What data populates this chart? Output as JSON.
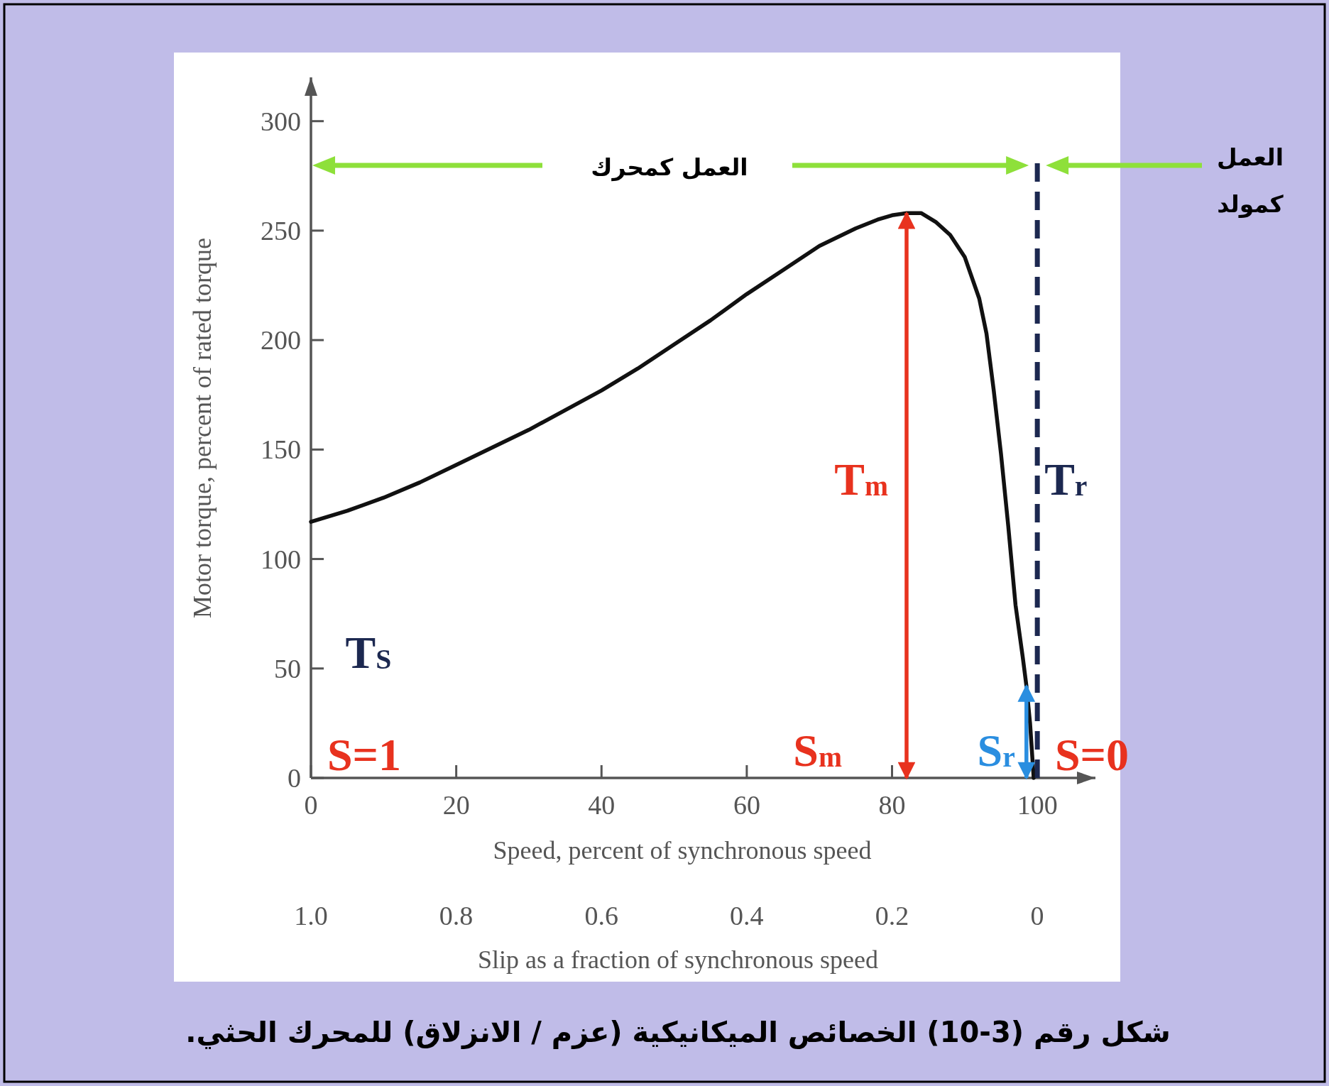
{
  "chart_data": {
    "type": "line",
    "title": "شكل رقم (3-10) الخصائص الميكانيكية (عزم / الانزلاق) للمحرك الحثي.",
    "xlabel": "Speed, percent of synchronous speed",
    "ylabel": "Motor torque, percent of rated torque",
    "x2label": "Slip as a fraction of synchronous speed",
    "xlim": [
      0,
      108
    ],
    "xticks": [
      0,
      20,
      40,
      60,
      80,
      100
    ],
    "ylim": [
      0,
      320
    ],
    "yticks": [
      0,
      50,
      100,
      150,
      200,
      250,
      300
    ],
    "x2lim": [
      1,
      0
    ],
    "x2ticks": [
      {
        "value": 1,
        "label": "1.0"
      },
      0.8,
      0.6,
      0.4,
      0.2,
      0
    ],
    "series": [
      {
        "color": "#111111",
        "x": [
          0,
          5,
          10,
          15,
          20,
          25,
          30,
          35,
          40,
          45,
          50,
          55,
          60,
          65,
          70,
          75,
          78,
          80,
          82,
          84,
          86,
          88,
          90,
          92,
          93,
          94,
          95,
          96,
          97,
          98,
          98.5,
          99,
          99.5
        ],
        "values": [
          117,
          122,
          128,
          135,
          143,
          151,
          159,
          168,
          177,
          187,
          198,
          209,
          221,
          232,
          243,
          251,
          255,
          257,
          258,
          258,
          254,
          248,
          238,
          219,
          203,
          177,
          148,
          115,
          79,
          55,
          42,
          25,
          0
        ]
      }
    ],
    "ref_lines": [
      {
        "axis": "x",
        "value": 100,
        "label": "T$_{r}$",
        "color": "#1c2850",
        "line_style": "dashed"
      },
      {
        "axis": "x",
        "value": 82,
        "label": "T$_{m}$",
        "color": "#e8321e",
        "line_style": "solid"
      },
      {
        "axis": "x",
        "value": 98.5,
        "label": "S$_{r}$",
        "color": "#2a8ee0",
        "line_style": "solid"
      }
    ],
    "annotations": [
      "S$_{m}$",
      "S=1",
      "S=0",
      "T$_{S}$",
      "العمل كمحرك",
      "العمل كمولد"
    ]
  }
}
